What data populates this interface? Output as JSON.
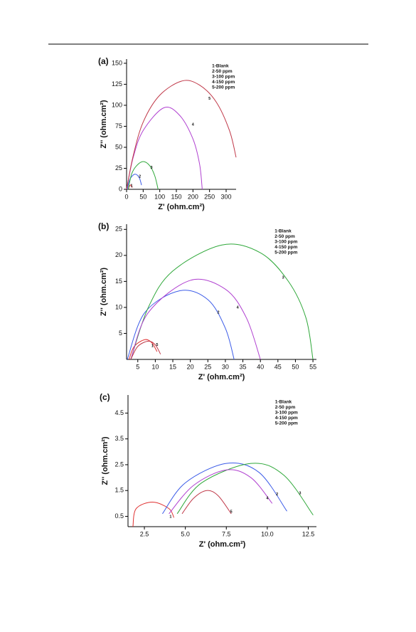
{
  "chart_data": [
    {
      "type": "line",
      "panel_label": "(a)",
      "xlabel": "Z' (ohm.cm²)",
      "ylabel": "Z'' (ohm.cm²)",
      "xlim": [
        0,
        330
      ],
      "ylim": [
        0,
        155
      ],
      "xticks": [
        0,
        50,
        100,
        150,
        200,
        250,
        300
      ],
      "yticks": [
        0,
        25,
        50,
        75,
        100,
        125,
        150
      ],
      "legend": "top-right",
      "series": [
        {
          "name": "1-Blank",
          "color": "#e03030",
          "x": [
            5,
            9,
            13,
            17
          ],
          "values": [
            0,
            4,
            5,
            2
          ],
          "curve_label": {
            "text": "1",
            "x": 15,
            "y": 4
          }
        },
        {
          "name": "2-50 ppm",
          "color": "#3c5ce8",
          "x": [
            2,
            10,
            25,
            38,
            45
          ],
          "values": [
            0,
            12,
            18,
            14,
            5
          ],
          "curve_label": {
            "text": "2",
            "x": 40,
            "y": 15
          }
        },
        {
          "name": "3-100 ppm",
          "color": "#2fa83a",
          "x": [
            5,
            15,
            30,
            50,
            70,
            85,
            95
          ],
          "values": [
            0,
            18,
            28,
            33,
            28,
            16,
            0
          ],
          "curve_label": {
            "text": "3",
            "x": 75,
            "y": 26
          }
        },
        {
          "name": "4-150 ppm",
          "color": "#b040d0",
          "x": [
            0,
            20,
            50,
            112,
            160,
            200,
            220,
            228
          ],
          "values": [
            0,
            38,
            70,
            97,
            88,
            60,
            30,
            0
          ],
          "curve_label": {
            "text": "4",
            "x": 200,
            "y": 77
          }
        },
        {
          "name": "5-200 ppm",
          "color": "#c03848",
          "x": [
            0,
            20,
            50,
            100,
            168,
            220,
            270,
            310,
            330
          ],
          "values": [
            0,
            40,
            80,
            112,
            129,
            124,
            104,
            70,
            38
          ],
          "curve_label": {
            "text": "5",
            "x": 250,
            "y": 108
          }
        }
      ]
    },
    {
      "type": "line",
      "panel_label": "(b)",
      "xlabel": "Z' (ohm.cm²)",
      "ylabel": "Z'' (ohm.cm²)",
      "xlim": [
        1.8,
        56
      ],
      "ylim": [
        0,
        26
      ],
      "xticks": [
        5,
        10,
        15,
        20,
        25,
        30,
        35,
        40,
        45,
        50,
        55
      ],
      "yticks": [
        5,
        10,
        15,
        20,
        25
      ],
      "legend": "top-right",
      "series": [
        {
          "name": "1-Blank",
          "color": "#e03030",
          "x": [
            2.5,
            4,
            7,
            9,
            10.5
          ],
          "values": [
            0,
            2.5,
            3.8,
            3.2,
            1.5
          ],
          "curve_label": {
            "text": "1",
            "x": 9.2,
            "y": 2.6
          }
        },
        {
          "name": "2-50 ppm",
          "color": "#3c5ce8",
          "x": [
            2,
            7,
            17,
            25,
            30,
            32.5
          ],
          "values": [
            0,
            9,
            13.2,
            11.5,
            6,
            0
          ],
          "curve_label": {
            "text": "2",
            "x": 28,
            "y": 9
          }
        },
        {
          "name": "3-100 ppm",
          "color": "#2fa83a",
          "x": [
            3,
            8,
            15,
            29,
            40,
            48,
            53,
            55
          ],
          "values": [
            0,
            10,
            17,
            22,
            20.5,
            15,
            8,
            0
          ],
          "curve_label": {
            "text": "3",
            "x": 46.5,
            "y": 15.7
          }
        },
        {
          "name": "4-150 ppm",
          "color": "#b040d0",
          "x": [
            3,
            8,
            20,
            30,
            36,
            40
          ],
          "values": [
            0,
            9,
            15.2,
            13.5,
            8,
            0
          ],
          "curve_label": {
            "text": "4",
            "x": 33.5,
            "y": 10
          }
        },
        {
          "name": "5-200 ppm",
          "color": "#c03848",
          "x": [
            3,
            5,
            8,
            10,
            11.5
          ],
          "values": [
            0,
            2.5,
            3.5,
            2.8,
            1
          ],
          "curve_label": {
            "text": "5",
            "x": 10.5,
            "y": 2.8
          }
        }
      ]
    },
    {
      "type": "line",
      "panel_label": "(c)",
      "xlabel": "Z' (ohm.cm²)",
      "ylabel": "Z'' (ohm.cm²)",
      "xlim": [
        1.5,
        13
      ],
      "ylim": [
        0.1,
        5.2
      ],
      "xticks": [
        2.5,
        {
          "value": 5,
          "label": "5.0"
        },
        7.5,
        {
          "value": 10,
          "label": "10.0"
        },
        12.5
      ],
      "yticks": [
        0.5,
        1.5,
        2.5,
        3.5,
        4.5
      ],
      "legend": "top-right",
      "series": [
        {
          "name": "1-Blank",
          "color": "#e03030",
          "x": [
            1.8,
            2,
            3,
            4,
            4.3
          ],
          "values": [
            0.1,
            0.8,
            1.05,
            0.8,
            0.45
          ],
          "curve_label": {
            "text": "1",
            "x": 4.1,
            "y": 0.48
          }
        },
        {
          "name": "2-50 ppm",
          "color": "#3c5ce8",
          "x": [
            3.6,
            5,
            7.5,
            9.5,
            11.2
          ],
          "values": [
            0.6,
            1.8,
            2.55,
            2.2,
            0.7
          ],
          "curve_label": {
            "text": "2",
            "x": 10.6,
            "y": 1.35
          }
        },
        {
          "name": "3-100 ppm",
          "color": "#2fa83a",
          "x": [
            4.5,
            6,
            9,
            11,
            12.8
          ],
          "values": [
            0.6,
            1.8,
            2.55,
            2.1,
            0.55
          ],
          "curve_label": {
            "text": "3",
            "x": 12,
            "y": 1.4
          }
        },
        {
          "name": "4-150 ppm",
          "color": "#b040d0",
          "x": [
            4,
            5.5,
            7.5,
            9,
            10.3
          ],
          "values": [
            0.6,
            1.7,
            2.3,
            2.0,
            1.0
          ],
          "curve_label": {
            "text": "4",
            "x": 10,
            "y": 1.2
          }
        },
        {
          "name": "5-200 ppm",
          "color": "#c03848",
          "x": [
            4.8,
            5.5,
            6.3,
            7,
            7.8
          ],
          "values": [
            0.6,
            1.2,
            1.5,
            1.3,
            0.6
          ],
          "curve_label": {
            "text": "5",
            "x": 7.8,
            "y": 0.68
          }
        }
      ]
    }
  ]
}
